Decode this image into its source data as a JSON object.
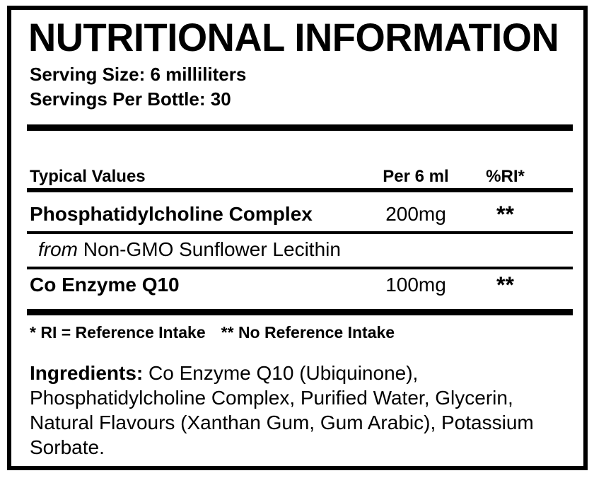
{
  "colors": {
    "ink": "#000000",
    "background": "#ffffff"
  },
  "label": {
    "title": "NUTRITIONAL INFORMATION",
    "serving_size": "Serving Size: 6 milliliters",
    "servings_per_bottle": "Servings Per Bottle: 30",
    "table": {
      "header": {
        "name": "Typical Values",
        "amount": "Per 6 ml",
        "ri": "%RI*"
      },
      "rows": [
        {
          "name": "Phosphatidylcholine Complex",
          "amount": "200mg",
          "ri": "**"
        },
        {
          "name": "Co Enzyme Q10",
          "amount": "100mg",
          "ri": "**"
        }
      ],
      "sub_row": {
        "italic_word": "from",
        "text": "Non-GMO Sunflower Lecithin"
      }
    },
    "footnotes": {
      "reference_intake": "* RI = Reference Intake",
      "no_reference_intake": "** No Reference Intake"
    },
    "ingredients": {
      "prefix": "Ingredients:",
      "lines": [
        "Co Enzyme Q10 (Ubiquinone),",
        "Phosphatidylcholine Complex, Purified Water, Glycerin,",
        "Natural Flavours (Xanthan Gum, Gum Arabic), Potassium",
        "Sorbate."
      ]
    }
  }
}
